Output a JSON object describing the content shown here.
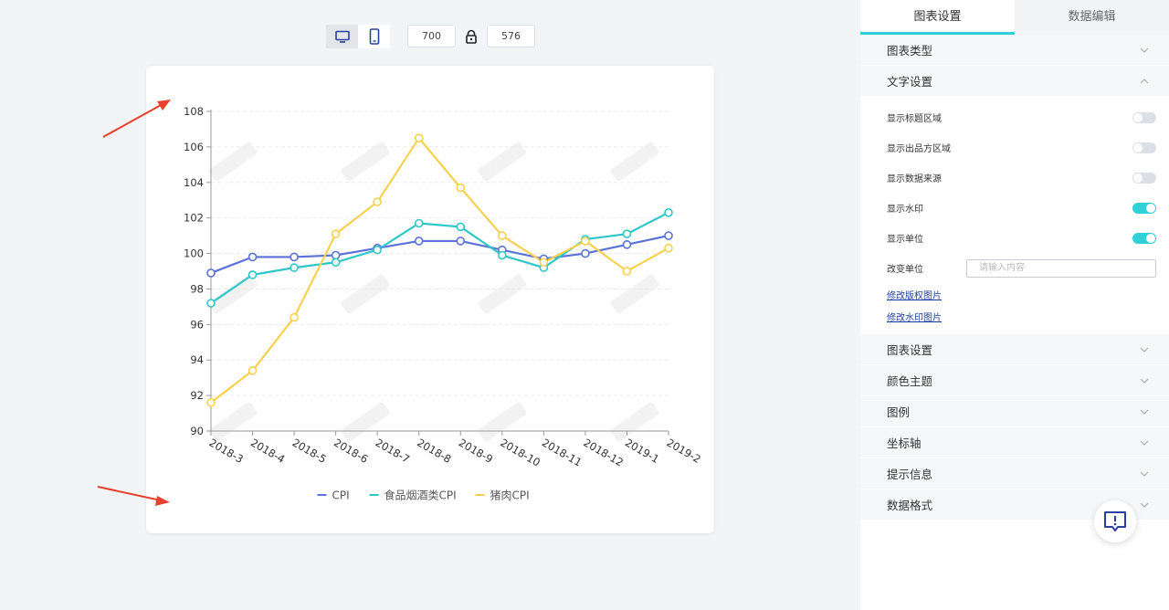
{
  "toolbar": {
    "width_value": "700",
    "height_value": "576",
    "icons": [
      "desktop-icon",
      "mobile-icon",
      "lock-icon"
    ]
  },
  "panel": {
    "tabs": [
      {
        "label": "图表设置",
        "active": true
      },
      {
        "label": "数据编辑",
        "active": false
      }
    ],
    "sections_top": [
      {
        "label": "图表类型",
        "expanded": false
      },
      {
        "label": "文字设置",
        "expanded": true
      }
    ],
    "text_settings": {
      "toggles": [
        {
          "label": "显示标题区域",
          "on": false
        },
        {
          "label": "显示出品方区域",
          "on": false
        },
        {
          "label": "显示数据来源",
          "on": false
        },
        {
          "label": "显示水印",
          "on": true
        },
        {
          "label": "显示单位",
          "on": true
        }
      ],
      "unit_label": "改变单位",
      "unit_placeholder": "请输入内容",
      "links": [
        "修改版权图片",
        "修改水印图片"
      ]
    },
    "sections_bottom": [
      {
        "label": "图表设置"
      },
      {
        "label": "颜色主题"
      },
      {
        "label": "图例"
      },
      {
        "label": "坐标轴"
      },
      {
        "label": "提示信息"
      },
      {
        "label": "数据格式"
      }
    ],
    "accent_color": "#2fd1d9"
  },
  "chart_data": {
    "type": "line",
    "categories": [
      "2018-3",
      "2018-4",
      "2018-5",
      "2018-6",
      "2018-7",
      "2018-8",
      "2018-9",
      "2018-10",
      "2018-11",
      "2018-12",
      "2019-1",
      "2019-2"
    ],
    "series": [
      {
        "name": "CPI",
        "color": "#5b72d8",
        "values": [
          98.9,
          99.8,
          99.8,
          99.9,
          100.3,
          100.7,
          100.7,
          100.2,
          99.7,
          100.0,
          100.5,
          101.0
        ]
      },
      {
        "name": "食品烟酒类CPI",
        "color": "#2ec7c9",
        "values": [
          97.2,
          98.8,
          99.2,
          99.5,
          100.2,
          101.7,
          101.5,
          99.9,
          99.2,
          100.8,
          101.1,
          102.3
        ]
      },
      {
        "name": "猪肉CPI",
        "color": "#f8d04f",
        "values": [
          91.6,
          93.4,
          96.4,
          101.1,
          102.9,
          106.5,
          103.7,
          101.0,
          99.5,
          100.7,
          99.0,
          100.3
        ]
      }
    ],
    "ylim": [
      90,
      108
    ],
    "yticks": [
      "90",
      "92",
      "94",
      "96",
      "98",
      "100",
      "102",
      "104",
      "106",
      "108"
    ],
    "legend_position": "bottom",
    "grid": true,
    "watermark": true
  }
}
